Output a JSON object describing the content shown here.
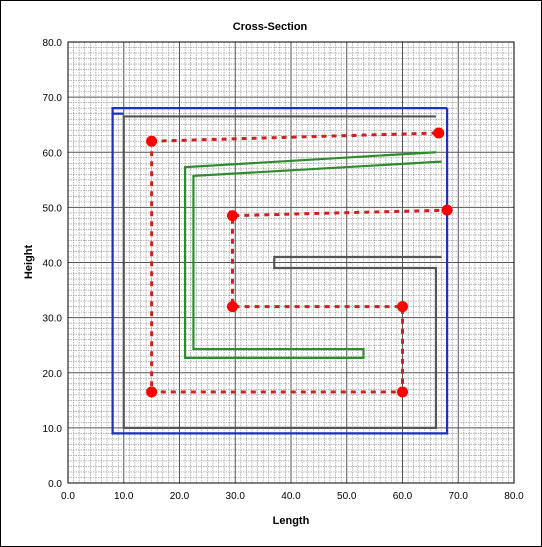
{
  "chart_data": {
    "type": "line",
    "title": "Cross-Section",
    "xlabel": "Length",
    "ylabel": "Height",
    "xlim": [
      0,
      80
    ],
    "ylim": [
      0,
      80
    ],
    "x_ticks": [
      "0.0",
      "10.0",
      "20.0",
      "30.0",
      "40.0",
      "50.0",
      "60.0",
      "70.0",
      "80.0"
    ],
    "y_ticks": [
      "0.0",
      "10.0",
      "20.0",
      "30.0",
      "40.0",
      "50.0",
      "60.0",
      "70.0",
      "80.0"
    ],
    "grid": true,
    "minor_grid_step": 1,
    "series": [
      {
        "style": "solid",
        "color": "#1f2fbf",
        "points": [
          [
            68,
            68
          ],
          [
            8,
            68
          ],
          [
            8,
            9
          ],
          [
            68,
            9
          ],
          [
            68,
            68
          ]
        ]
      },
      {
        "style": "solid",
        "color": "#1f2fbf",
        "points": [
          [
            8,
            67
          ],
          [
            10,
            67
          ]
        ]
      },
      {
        "style": "solid",
        "color": "#555555",
        "points": [
          [
            66,
            66.5
          ],
          [
            10,
            66.5
          ],
          [
            10,
            10
          ],
          [
            66,
            10
          ],
          [
            66,
            39
          ],
          [
            37,
            39
          ],
          [
            37,
            41
          ],
          [
            67,
            41
          ]
        ]
      },
      {
        "style": "solid",
        "color": "#2e8b2e",
        "points": [
          [
            66,
            60
          ],
          [
            21,
            57.3
          ],
          [
            21,
            22.7
          ],
          [
            53,
            22.7
          ],
          [
            53,
            24.3
          ],
          [
            22.5,
            24.3
          ],
          [
            22.5,
            55.7
          ],
          [
            67,
            58.3
          ]
        ]
      },
      {
        "style": "dotted",
        "color": "#cc2222",
        "points": [
          [
            15,
            62
          ],
          [
            66.5,
            63.5
          ]
        ]
      },
      {
        "style": "dotted",
        "color": "#cc2222",
        "points": [
          [
            15,
            62
          ],
          [
            15,
            16.5
          ],
          [
            60,
            16.5
          ],
          [
            60,
            32
          ],
          [
            29.5,
            32
          ],
          [
            29.5,
            48.5
          ],
          [
            68,
            49.5
          ]
        ]
      }
    ],
    "markers": {
      "color": "#ff0000",
      "points": [
        [
          15,
          62
        ],
        [
          66.5,
          63.5
        ],
        [
          15,
          16.5
        ],
        [
          60,
          16.5
        ],
        [
          60,
          32
        ],
        [
          29.5,
          32
        ],
        [
          29.5,
          48.5
        ],
        [
          68,
          49.5
        ]
      ]
    }
  }
}
